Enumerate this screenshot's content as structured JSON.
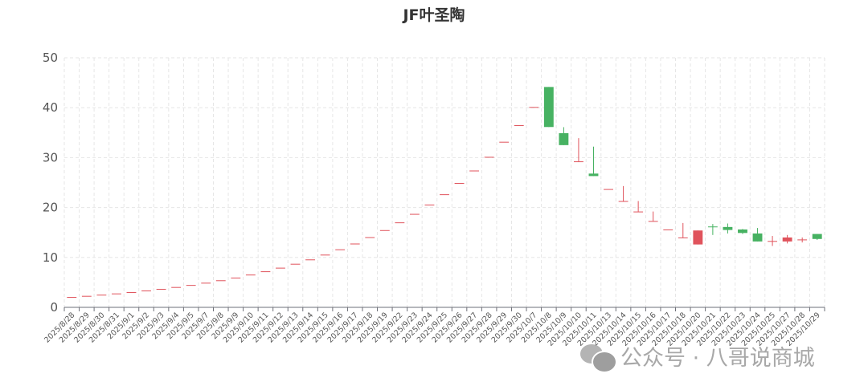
{
  "chart_data": {
    "type": "candlestick",
    "title": "JF叶圣陶",
    "xlabel": "",
    "ylabel": "",
    "ylim": [
      0,
      50
    ],
    "yticks": [
      0,
      10,
      20,
      30,
      40,
      50
    ],
    "grid": true,
    "up_color": "#e0535c",
    "down_color": "#47b262",
    "categories": [
      "2025/8/28",
      "2025/8/29",
      "2025/8/30",
      "2025/8/31",
      "2025/9/1",
      "2025/9/2",
      "2025/9/3",
      "2025/9/4",
      "2025/9/5",
      "2025/9/7",
      "2025/9/8",
      "2025/9/9",
      "2025/9/10",
      "2025/9/11",
      "2025/9/12",
      "2025/9/13",
      "2025/9/14",
      "2025/9/15",
      "2025/9/16",
      "2025/9/17",
      "2025/9/18",
      "2025/9/19",
      "2025/9/22",
      "2025/9/23",
      "2025/9/24",
      "2025/9/25",
      "2025/9/26",
      "2025/9/27",
      "2025/9/28",
      "2025/9/29",
      "2025/9/30",
      "2025/10/7",
      "2025/10/8",
      "2025/10/9",
      "2025/10/10",
      "2025/10/11",
      "2025/10/13",
      "2025/10/14",
      "2025/10/15",
      "2025/10/16",
      "2025/10/17",
      "2025/10/18",
      "2025/10/20",
      "2025/10/21",
      "2025/10/22",
      "2025/10/23",
      "2025/10/24",
      "2025/10/25",
      "2025/10/27",
      "2025/10/28",
      "2025/10/29"
    ],
    "ohlc_order": [
      "open",
      "close",
      "low",
      "high"
    ],
    "values": [
      [
        2.09,
        2.09,
        2.09,
        2.09
      ],
      [
        2.3,
        2.3,
        2.3,
        2.3
      ],
      [
        2.53,
        2.53,
        2.53,
        2.53
      ],
      [
        2.78,
        2.78,
        2.78,
        2.78
      ],
      [
        3.06,
        3.06,
        3.06,
        3.06
      ],
      [
        3.37,
        3.37,
        3.37,
        3.37
      ],
      [
        3.7,
        3.7,
        3.7,
        3.7
      ],
      [
        4.07,
        4.07,
        4.07,
        4.07
      ],
      [
        4.48,
        4.48,
        4.48,
        4.48
      ],
      [
        4.93,
        4.93,
        4.93,
        4.93
      ],
      [
        5.42,
        5.42,
        5.42,
        5.42
      ],
      [
        5.96,
        5.96,
        5.96,
        5.96
      ],
      [
        6.56,
        6.56,
        6.56,
        6.56
      ],
      [
        7.22,
        7.22,
        7.22,
        7.22
      ],
      [
        7.94,
        7.94,
        7.94,
        7.94
      ],
      [
        8.73,
        8.73,
        8.73,
        8.73
      ],
      [
        9.6,
        9.6,
        9.6,
        9.6
      ],
      [
        10.56,
        10.56,
        10.56,
        10.56
      ],
      [
        11.62,
        11.62,
        11.62,
        11.62
      ],
      [
        12.78,
        12.78,
        12.78,
        12.78
      ],
      [
        14.06,
        14.06,
        14.06,
        14.06
      ],
      [
        15.47,
        15.47,
        15.47,
        15.47
      ],
      [
        17.02,
        17.02,
        17.02,
        17.02
      ],
      [
        18.72,
        18.72,
        18.72,
        18.72
      ],
      [
        20.59,
        20.59,
        20.59,
        20.59
      ],
      [
        22.65,
        22.65,
        22.65,
        22.65
      ],
      [
        24.92,
        24.92,
        24.92,
        24.92
      ],
      [
        27.41,
        27.41,
        27.41,
        27.41
      ],
      [
        30.15,
        30.15,
        30.15,
        30.15
      ],
      [
        33.17,
        33.17,
        33.17,
        33.17
      ],
      [
        36.49,
        36.49,
        36.49,
        36.49
      ],
      [
        40.14,
        40.14,
        40.14,
        40.14
      ],
      [
        44.15,
        36.13,
        36.13,
        44.15
      ],
      [
        34.9,
        32.5,
        32.5,
        36.1
      ],
      [
        29.25,
        29.25,
        29.25,
        33.9
      ],
      [
        26.8,
        26.3,
        26.3,
        32.2
      ],
      [
        23.7,
        23.7,
        23.7,
        23.7
      ],
      [
        21.3,
        21.3,
        21.3,
        24.3
      ],
      [
        19.2,
        19.2,
        19.2,
        21.3
      ],
      [
        17.3,
        17.3,
        17.3,
        19.2
      ],
      [
        15.6,
        15.6,
        15.6,
        15.6
      ],
      [
        14.0,
        14.0,
        14.0,
        16.9
      ],
      [
        12.6,
        15.4,
        12.6,
        15.4
      ],
      [
        16.2,
        16.1,
        14.5,
        16.7
      ],
      [
        16.1,
        15.5,
        14.8,
        16.8
      ],
      [
        15.6,
        14.9,
        14.7,
        15.7
      ],
      [
        14.8,
        13.2,
        13.2,
        15.9
      ],
      [
        13.2,
        13.3,
        12.3,
        14.3
      ],
      [
        13.2,
        14.0,
        12.8,
        14.5
      ],
      [
        13.5,
        13.6,
        13.0,
        14.0
      ],
      [
        14.7,
        13.7,
        13.5,
        14.7
      ]
    ]
  },
  "watermark": {
    "icon": "wechat-icon",
    "text": "公众号 · 八哥说商城"
  }
}
